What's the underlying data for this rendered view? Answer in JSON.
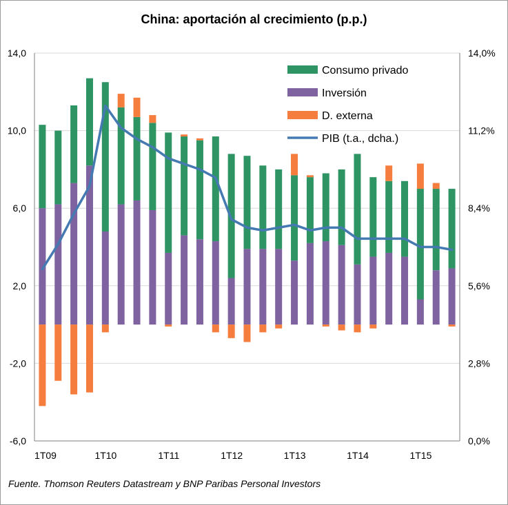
{
  "chart_data": {
    "type": "bar",
    "title": "China: aportación al crecimiento (p.p.)",
    "source": "Fuente. Thomson Reuters Datastream y BNP Paribas Personal Investors",
    "ylim_left": [
      -6,
      14
    ],
    "ylim_right": [
      0,
      14
    ],
    "left_ticks": [
      "14,0",
      "10,0",
      "6,0",
      "2,0",
      "-2,0",
      "-6,0"
    ],
    "right_ticks": [
      "14,0%",
      "11,2%",
      "8,4%",
      "5,6%",
      "2,8%",
      "0,0%"
    ],
    "x_tick_labels": [
      {
        "label": "1T09",
        "index": 0
      },
      {
        "label": "1T10",
        "index": 4
      },
      {
        "label": "1T11",
        "index": 8
      },
      {
        "label": "1T12",
        "index": 12
      },
      {
        "label": "1T13",
        "index": 16
      },
      {
        "label": "1T14",
        "index": 20
      },
      {
        "label": "1T15",
        "index": 24
      }
    ],
    "categories": [
      "1T09",
      "2T09",
      "3T09",
      "4T09",
      "1T10",
      "2T10",
      "3T10",
      "4T10",
      "1T11",
      "2T11",
      "3T11",
      "4T11",
      "1T12",
      "2T12",
      "3T12",
      "4T12",
      "1T13",
      "2T13",
      "3T13",
      "4T13",
      "1T14",
      "2T14",
      "3T14",
      "4T14",
      "1T15",
      "2T15",
      "3T15"
    ],
    "series": [
      {
        "name": "Inversión",
        "color": "#7f63a1",
        "values": [
          6.0,
          6.2,
          7.3,
          8.2,
          4.8,
          6.2,
          6.4,
          5.9,
          3.7,
          4.6,
          4.4,
          4.3,
          2.4,
          3.9,
          3.9,
          3.9,
          3.3,
          4.2,
          4.3,
          4.1,
          3.1,
          3.5,
          3.7,
          3.5,
          1.3,
          2.8,
          2.9
        ]
      },
      {
        "name": "Consumo privado",
        "color": "#2e9464",
        "values": [
          4.3,
          3.8,
          4.0,
          4.5,
          7.7,
          5.0,
          4.3,
          4.5,
          6.2,
          5.1,
          5.1,
          5.4,
          6.4,
          4.8,
          4.3,
          4.1,
          4.4,
          3.4,
          3.5,
          3.9,
          5.7,
          4.1,
          3.7,
          3.9,
          5.7,
          4.2,
          4.1
        ]
      },
      {
        "name": "D. externa",
        "color": "#f57d3d",
        "values": [
          -4.2,
          -2.9,
          -3.6,
          -3.5,
          -0.4,
          0.7,
          1.0,
          0.4,
          -0.1,
          0.1,
          0.1,
          -0.4,
          -0.7,
          -0.9,
          -0.4,
          -0.2,
          1.1,
          0.1,
          -0.1,
          -0.3,
          -0.4,
          -0.2,
          0.8,
          0.0,
          1.3,
          0.3,
          -0.1
        ]
      },
      {
        "name": "PIB (t.a., dcha.)",
        "color": "#4479b2",
        "type": "line",
        "axis": "right",
        "values": [
          6.2,
          7.1,
          8.2,
          9.2,
          12.1,
          11.3,
          10.9,
          10.6,
          10.2,
          10.0,
          9.8,
          9.5,
          8.0,
          7.7,
          7.6,
          7.7,
          7.8,
          7.6,
          7.7,
          7.7,
          7.3,
          7.3,
          7.3,
          7.3,
          7.0,
          7.0,
          6.9
        ]
      }
    ],
    "legend": [
      "Consumo privado",
      "Inversión",
      "D. externa",
      "PIB (t.a., dcha.)"
    ],
    "legend_position": "top-right",
    "grid": true
  }
}
